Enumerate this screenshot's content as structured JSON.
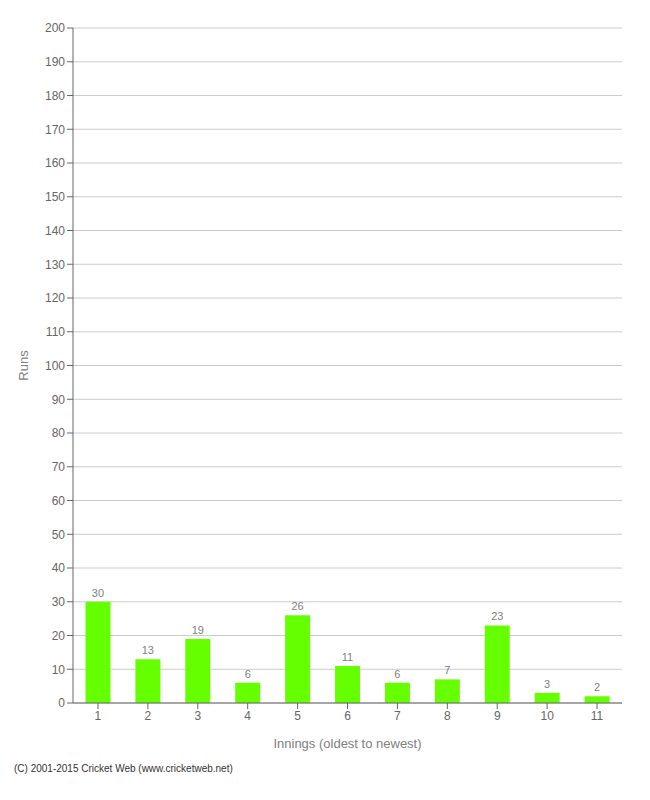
{
  "chart_data": {
    "type": "bar",
    "xlabel": "Innings (oldest to newest)",
    "ylabel": "Runs",
    "categories": [
      "1",
      "2",
      "3",
      "4",
      "5",
      "6",
      "7",
      "8",
      "9",
      "10",
      "11"
    ],
    "values": [
      30,
      13,
      19,
      6,
      26,
      11,
      6,
      7,
      23,
      3,
      2
    ],
    "color": "#66ff00",
    "ylim": [
      0,
      200
    ],
    "yticks": [
      0,
      10,
      20,
      30,
      40,
      50,
      60,
      70,
      80,
      90,
      100,
      110,
      120,
      130,
      140,
      150,
      160,
      170,
      180,
      190,
      200
    ],
    "grid": true,
    "data_labels": true,
    "footnote": "(C) 2001-2015 Cricket Web (www.cricketweb.net)"
  }
}
